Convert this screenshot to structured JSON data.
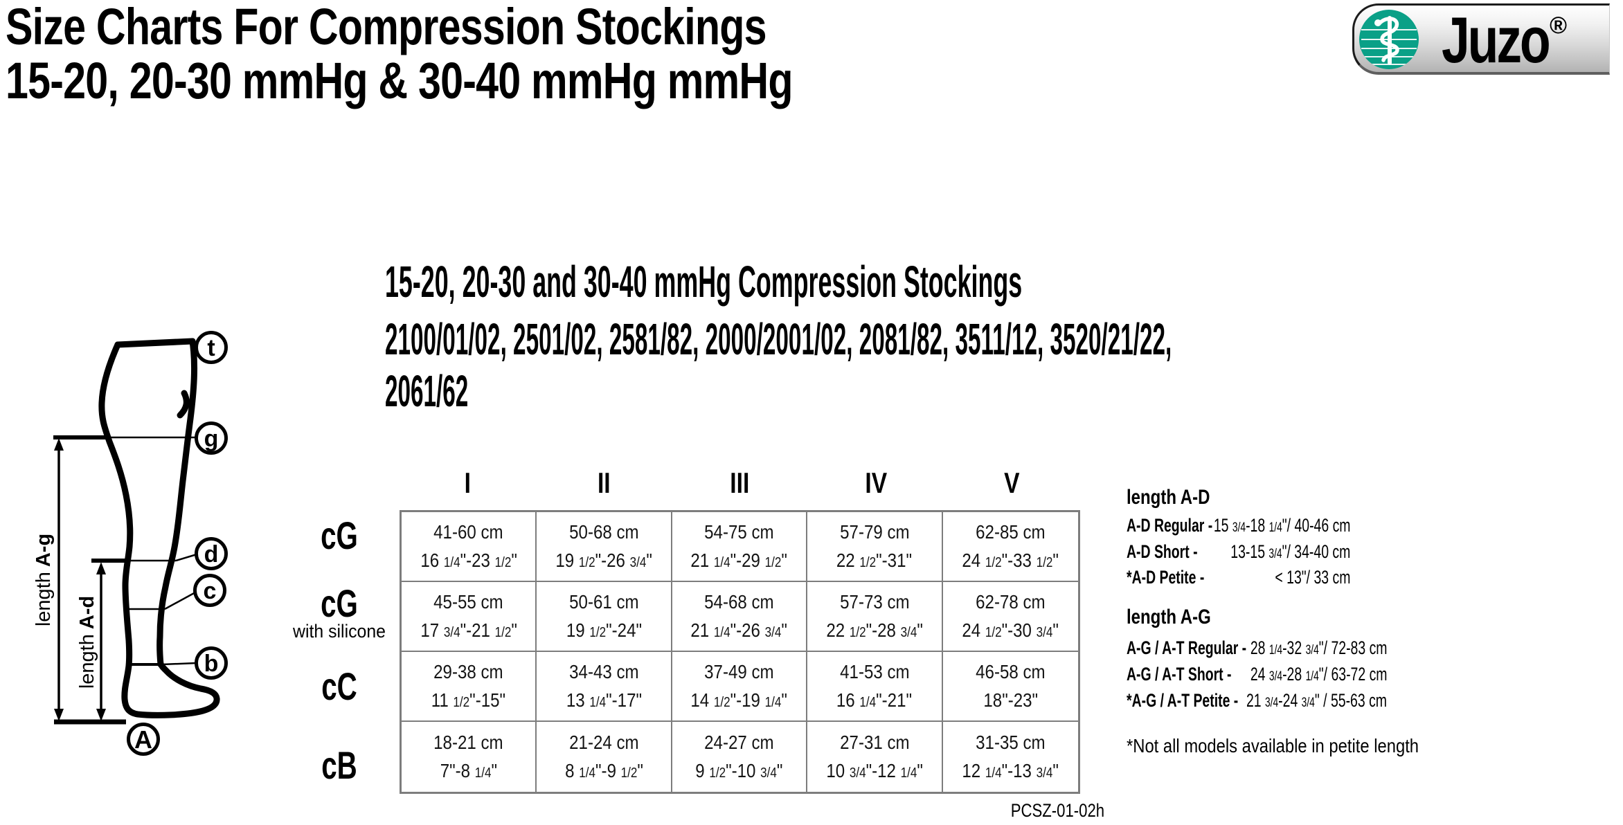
{
  "page": {
    "title_line1": "Size Charts For Compression Stockings",
    "title_line2": "15-20, 20-30 mmHg & 30-40 mmHg mmHg",
    "doc_code": "PCSZ-01-02h"
  },
  "logo": {
    "brand": "Juzo",
    "registered": "®",
    "symbol": "staff-of-asclepius",
    "green": "#0aa087"
  },
  "section": {
    "heading": "15-20, 20-30 and 30-40 mmHg Compression Stockings",
    "models_line1": "2100/01/02, 2501/02, 2581/82, 2000/2001/02, 2081/82, 3511/12, 3520/21/22,",
    "models_line2": "2061/62"
  },
  "diagram": {
    "points": [
      "t",
      "g",
      "d",
      "c",
      "b",
      "A"
    ],
    "len_ag": {
      "prefix": "length",
      "bold": " A-g"
    },
    "len_ad": {
      "prefix": "length",
      "bold": " A-d"
    }
  },
  "table": {
    "columns": [
      "I",
      "II",
      "III",
      "IV",
      "V"
    ],
    "rows": [
      {
        "label": "cG",
        "sublabel": "",
        "cells": [
          {
            "cm": "41-60 cm",
            "inch": "16 1/4\"-23 1/2\""
          },
          {
            "cm": "50-68 cm",
            "inch": "19 1/2\"-26 3/4\""
          },
          {
            "cm": "54-75 cm",
            "inch": "21 1/4\"-29 1/2\""
          },
          {
            "cm": "57-79 cm",
            "inch": "22 1/2\"-31\""
          },
          {
            "cm": "62-85 cm",
            "inch": "24 1/2\"-33 1/2\""
          }
        ]
      },
      {
        "label": "cG",
        "sublabel": "with silicone",
        "cells": [
          {
            "cm": "45-55 cm",
            "inch": "17 3/4\"-21 1/2\""
          },
          {
            "cm": "50-61 cm",
            "inch": "19 1/2\"-24\""
          },
          {
            "cm": "54-68 cm",
            "inch": "21 1/4\"-26 3/4\""
          },
          {
            "cm": "57-73 cm",
            "inch": "22 1/2\"-28 3/4\""
          },
          {
            "cm": "62-78 cm",
            "inch": "24 1/2\"-30 3/4\""
          }
        ]
      },
      {
        "label": "cC",
        "sublabel": "",
        "cells": [
          {
            "cm": "29-38 cm",
            "inch": "11 1/2\"-15\""
          },
          {
            "cm": "34-43 cm",
            "inch": "13 1/4\"-17\""
          },
          {
            "cm": "37-49 cm",
            "inch": "14 1/2\"-19 1/4\""
          },
          {
            "cm": "41-53 cm",
            "inch": "16 1/4\"-21\""
          },
          {
            "cm": "46-58 cm",
            "inch": "18\"-23\""
          }
        ]
      },
      {
        "label": "cB",
        "sublabel": "",
        "cells": [
          {
            "cm": "18-21 cm",
            "inch": "7\"-8 1/4\""
          },
          {
            "cm": "21-24 cm",
            "inch": "8 1/4\"-9 1/2\""
          },
          {
            "cm": "24-27 cm",
            "inch": "9 1/2\"-10 3/4\""
          },
          {
            "cm": "27-31 cm",
            "inch": "10 3/4\"-12 1/4\""
          },
          {
            "cm": "31-35 cm",
            "inch": "12 1/4\"-13 3/4\""
          }
        ]
      }
    ]
  },
  "length_info": {
    "block_ad": {
      "heading": "length A-D",
      "rows": [
        {
          "label": "A-D Regular -",
          "value": "15 3/4-18 1/4\"/ 40-46 cm"
        },
        {
          "label": "A-D Short -",
          "value": "13-15 3/4\"/ 34-40 cm"
        },
        {
          "label": "*A-D Petite -",
          "value": "< 13\"/ 33 cm"
        }
      ]
    },
    "block_ag": {
      "heading": "length A-G",
      "rows": [
        {
          "label": "A-G / A-T Regular  -",
          "value": "28 1/4-32 3/4\"/ 72-83 cm"
        },
        {
          "label": "A-G / A-T Short -",
          "value": "24 3/4-28 1/4\"/ 63-72 cm"
        },
        {
          "label": "*A-G / A-T Petite -",
          "value": "21 3/4-24 3/4\" / 55-63 cm"
        }
      ]
    },
    "footnote": "*Not all models available in petite length"
  }
}
